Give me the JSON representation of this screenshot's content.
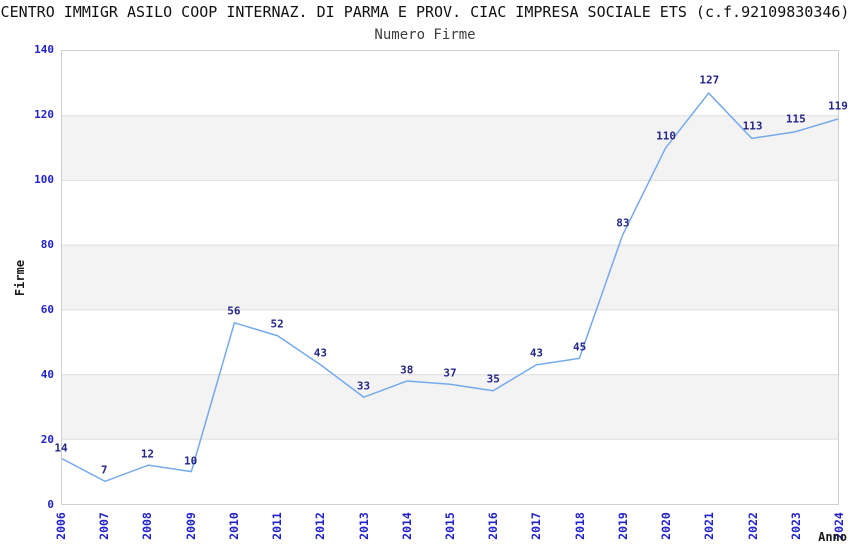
{
  "header": {
    "title": "CENTRO IMMIGR ASILO COOP INTERNAZ. DI PARMA E PROV. CIAC IMPRESA SOCIALE ETS (c.f.92109830346)"
  },
  "chart_data": {
    "type": "line",
    "title": "Numero Firme",
    "xlabel": "Anno",
    "ylabel": "Firme",
    "categories": [
      "2006",
      "2007",
      "2008",
      "2009",
      "2010",
      "2011",
      "2012",
      "2013",
      "2014",
      "2015",
      "2016",
      "2017",
      "2018",
      "2019",
      "2020",
      "2021",
      "2022",
      "2023",
      "2024"
    ],
    "values": [
      14,
      7,
      12,
      10,
      56,
      52,
      43,
      33,
      38,
      37,
      35,
      43,
      45,
      83,
      110,
      127,
      113,
      115,
      119
    ],
    "ylim": [
      0,
      140
    ],
    "ytick_step": 20,
    "grid": "horizontal-only",
    "band_fill": "alternating-horizontal",
    "legend": "none",
    "colors": {
      "line": "#74aaec",
      "tick_label": "#2222cc",
      "data_label": "#26268a",
      "band": "#f3f3f3",
      "gridline": "#dedede",
      "plot_border": "#cfcfcf",
      "title": "#111111",
      "subtitle": "#3d3d3d",
      "axis_title": "#1a1a1a"
    }
  }
}
